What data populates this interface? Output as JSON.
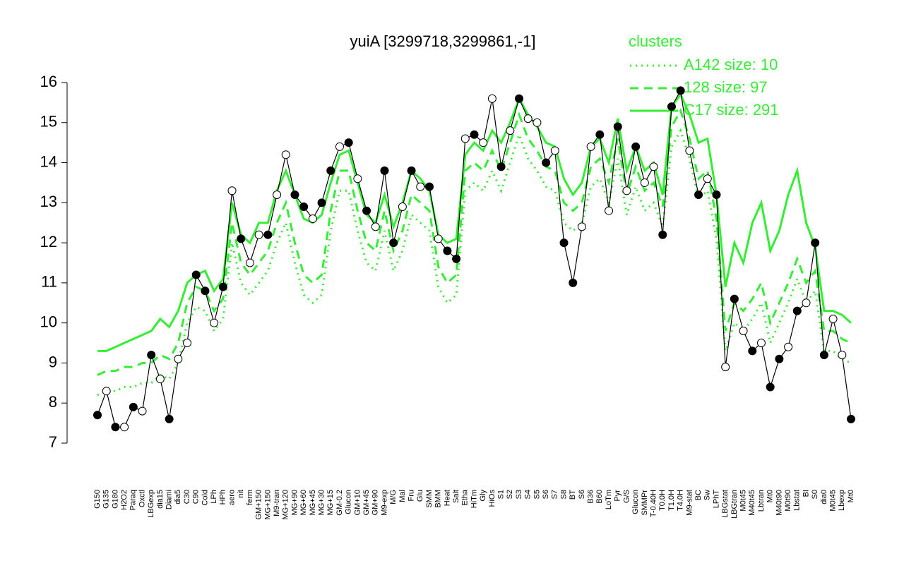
{
  "chart_data": {
    "type": "line",
    "title": "yuiA [3299718,3299861,-1]",
    "legend_title": "clusters",
    "legend_position": "top-right",
    "categories": [
      "G150",
      "G135",
      "G180",
      "H2O2",
      "Paraq",
      "Oxctl",
      "LBGexp",
      "dia15",
      "Diami",
      "dia5",
      "C30",
      "C90",
      "Cold",
      "LPh",
      "HPh",
      "aero",
      "nit",
      "ferm",
      "GM+150",
      "MG+150",
      "M9-tran",
      "MG+120",
      "MG+90",
      "MG+60",
      "MG+45",
      "MG+30",
      "MG+15",
      "GM-0.2",
      "Glucon",
      "GM+10",
      "GM+45",
      "GM+90",
      "M9-exp",
      "M/G",
      "Mal",
      "Fru",
      "Glu",
      "SMM",
      "BMM",
      "Heat",
      "Salt",
      "Etha",
      "HiTm",
      "Gly",
      "HiOs",
      "S1",
      "S2",
      "S3",
      "S4",
      "S5",
      "S6",
      "S7",
      "S8",
      "BT",
      "S6",
      "B36",
      "B60",
      "LoTm",
      "Pyr",
      "G/S",
      "Glucon",
      "SMMPr",
      "T-0.40H",
      "T0.0H",
      "T1.0H",
      "T4.0H",
      "M9-stat",
      "BC",
      "Sw",
      "LPhT",
      "LBGstat",
      "LBGtran",
      "M0t45",
      "M40t45",
      "Lbtran",
      "Mt0",
      "M40t90",
      "M0t90",
      "Lbstat",
      "BI",
      "S0",
      "dia0",
      "M0t45",
      "Lbexp",
      "Mt0"
    ],
    "values": [
      7.7,
      8.3,
      7.4,
      7.4,
      7.9,
      7.8,
      9.2,
      8.6,
      7.6,
      9.1,
      9.5,
      11.2,
      10.8,
      10.0,
      10.9,
      13.3,
      12.1,
      11.5,
      12.2,
      12.2,
      13.2,
      14.2,
      13.2,
      12.9,
      12.6,
      13.0,
      13.8,
      14.4,
      14.5,
      13.6,
      12.8,
      12.4,
      13.8,
      12.0,
      12.9,
      13.8,
      13.4,
      13.4,
      12.1,
      11.8,
      11.6,
      14.6,
      14.7,
      14.5,
      15.6,
      13.9,
      14.8,
      15.6,
      15.1,
      15.0,
      14.0,
      14.3,
      12.0,
      11.0,
      12.4,
      14.4,
      14.7,
      12.8,
      14.9,
      13.3,
      14.4,
      13.5,
      13.9,
      12.2,
      15.4,
      15.8,
      14.3,
      13.2,
      13.6,
      13.2,
      8.9,
      10.6,
      9.8,
      9.3,
      9.5,
      8.4,
      9.1,
      9.4,
      10.3,
      10.5,
      12.0,
      9.2,
      10.1,
      9.2,
      7.6
    ],
    "marker_filled": [
      true,
      false,
      true,
      false,
      true,
      false,
      true,
      false,
      true,
      false,
      false,
      true,
      true,
      false,
      true,
      false,
      true,
      false,
      false,
      true,
      false,
      false,
      true,
      true,
      false,
      true,
      true,
      false,
      true,
      false,
      true,
      false,
      true,
      true,
      false,
      true,
      false,
      true,
      false,
      true,
      true,
      false,
      true,
      false,
      false,
      true,
      false,
      true,
      false,
      false,
      true,
      false,
      true,
      true,
      false,
      false,
      true,
      false,
      true,
      false,
      true,
      false,
      false,
      true,
      true,
      true,
      false,
      true,
      false,
      true,
      false,
      true,
      false,
      true,
      false,
      true,
      true,
      false,
      true,
      false,
      true,
      true,
      false,
      false,
      true
    ],
    "color": "#000000",
    "series": [
      {
        "name": "A142 size: 10",
        "color": "#33ee33",
        "dash": "dotted",
        "values": [
          8.2,
          8.3,
          8.3,
          8.4,
          8.4,
          8.5,
          8.5,
          8.7,
          8.6,
          9.0,
          10.0,
          10.4,
          10.3,
          9.8,
          10.1,
          12.0,
          11.0,
          10.7,
          11.0,
          11.3,
          12.0,
          12.5,
          11.5,
          10.7,
          10.5,
          10.7,
          12.3,
          13.3,
          13.3,
          12.3,
          11.5,
          11.3,
          12.3,
          11.3,
          11.8,
          12.7,
          12.5,
          12.3,
          10.9,
          10.5,
          10.7,
          13.3,
          13.5,
          13.3,
          13.8,
          13.3,
          14.0,
          14.7,
          14.1,
          13.8,
          13.4,
          13.3,
          12.5,
          12.3,
          12.5,
          13.4,
          13.6,
          13.0,
          14.1,
          12.7,
          13.4,
          12.8,
          13.0,
          12.4,
          14.4,
          14.8,
          14.1,
          13.1,
          13.3,
          12.1,
          9.3,
          10.0,
          9.8,
          10.1,
          10.5,
          9.5,
          10.0,
          10.5,
          11.1,
          10.5,
          10.8,
          9.3,
          9.3,
          9.1,
          9.0
        ]
      },
      {
        "name": "128 size: 97",
        "color": "#33ee33",
        "dash": "dashed",
        "values": [
          8.7,
          8.8,
          8.8,
          8.9,
          8.9,
          9.0,
          9.0,
          9.2,
          9.1,
          9.5,
          10.5,
          10.9,
          10.8,
          10.3,
          10.6,
          12.5,
          11.5,
          11.2,
          11.5,
          11.8,
          12.5,
          13.0,
          12.0,
          11.2,
          11.0,
          11.2,
          12.8,
          13.8,
          13.8,
          12.8,
          12.0,
          11.8,
          12.8,
          11.8,
          12.3,
          13.2,
          13.0,
          12.8,
          11.4,
          11.0,
          11.2,
          13.8,
          14.0,
          13.8,
          14.3,
          13.8,
          14.5,
          15.2,
          14.6,
          14.3,
          13.9,
          13.8,
          13.0,
          12.8,
          13.0,
          13.9,
          14.1,
          13.5,
          14.6,
          13.2,
          13.9,
          13.3,
          13.5,
          12.9,
          14.9,
          15.3,
          14.6,
          13.6,
          13.8,
          12.6,
          9.8,
          10.5,
          10.3,
          10.6,
          11.0,
          10.0,
          10.5,
          11.0,
          11.6,
          11.0,
          11.3,
          9.8,
          9.8,
          9.6,
          9.5
        ]
      },
      {
        "name": "C17 size: 291",
        "color": "#33ee33",
        "dash": "solid",
        "values": [
          9.3,
          9.3,
          9.4,
          9.5,
          9.6,
          9.7,
          9.8,
          10.1,
          9.9,
          10.3,
          11.0,
          11.2,
          11.3,
          10.8,
          11.1,
          13.0,
          12.2,
          12.0,
          12.5,
          12.5,
          13.3,
          13.8,
          13.2,
          12.6,
          12.5,
          12.7,
          13.5,
          14.2,
          14.3,
          13.5,
          12.7,
          12.5,
          13.2,
          12.4,
          13.0,
          13.8,
          13.6,
          13.3,
          12.2,
          12.0,
          12.1,
          14.2,
          14.5,
          14.3,
          14.8,
          14.5,
          15.0,
          15.6,
          15.2,
          14.9,
          14.5,
          14.4,
          13.6,
          13.2,
          13.5,
          14.4,
          14.6,
          14.0,
          15.1,
          13.8,
          14.4,
          13.8,
          14.0,
          13.2,
          15.4,
          15.7,
          15.2,
          14.5,
          14.6,
          13.2,
          10.9,
          12.0,
          11.5,
          12.5,
          13.0,
          11.8,
          12.3,
          13.2,
          13.8,
          12.5,
          11.9,
          10.3,
          10.3,
          10.2,
          10.0
        ]
      }
    ],
    "ylim": [
      7,
      16
    ],
    "yticks": [
      7,
      8,
      9,
      10,
      11,
      12,
      13,
      14,
      15,
      16
    ]
  }
}
